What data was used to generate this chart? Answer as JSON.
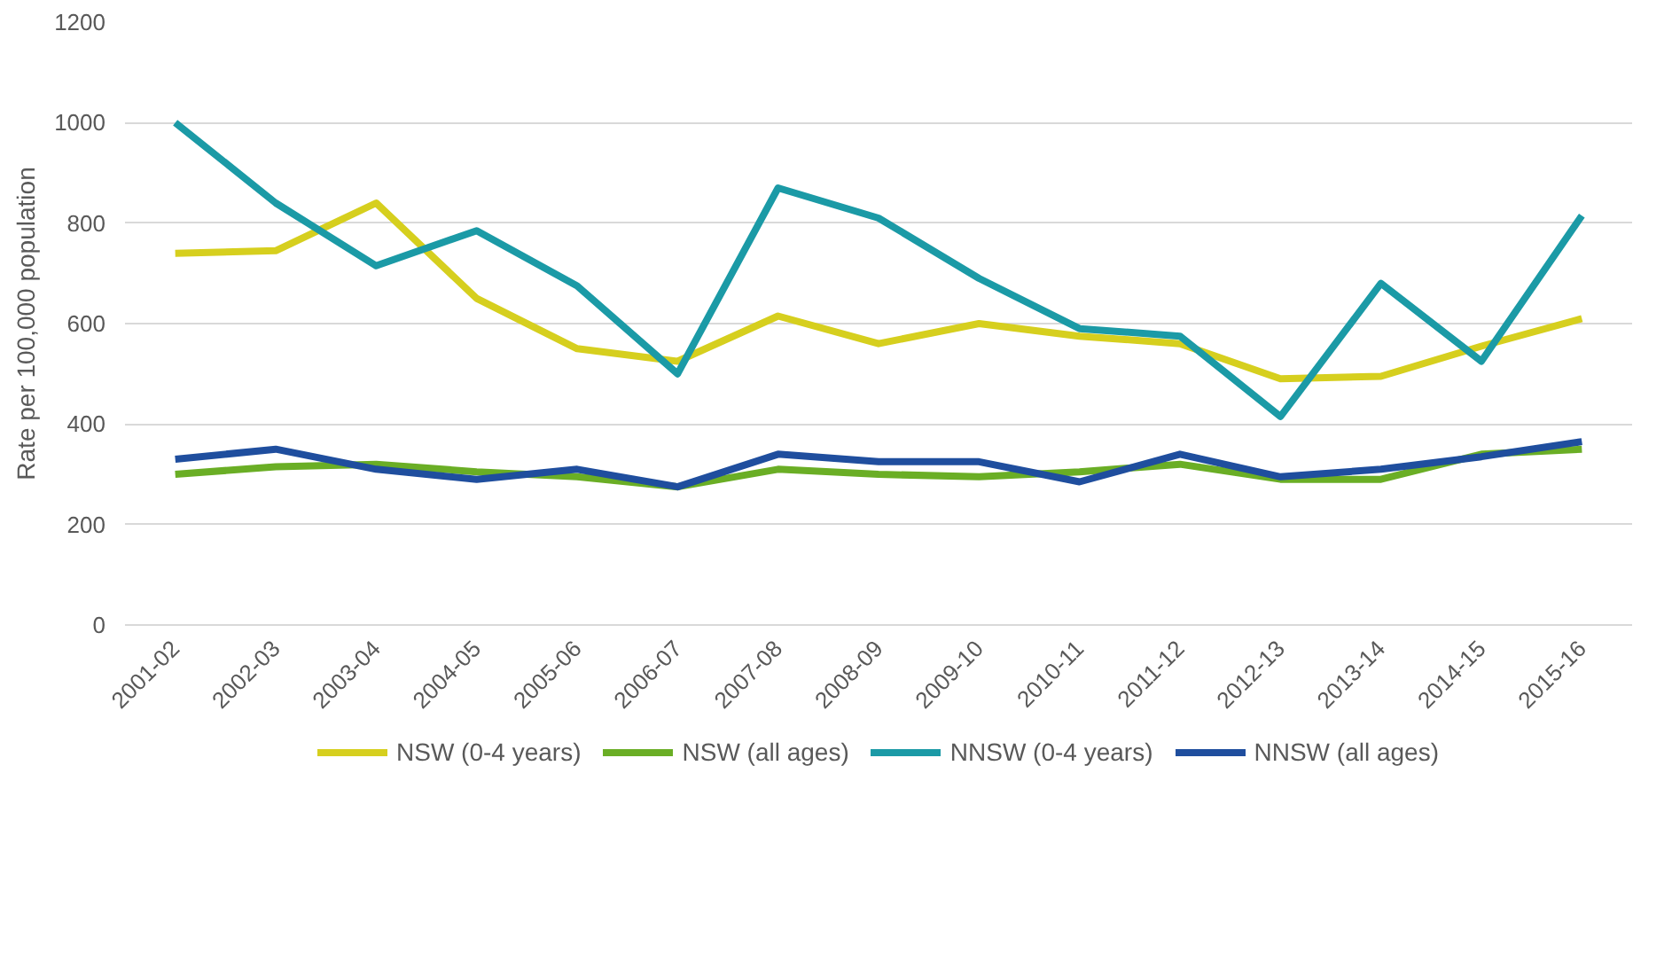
{
  "chart_data": {
    "type": "line",
    "ylabel": "Rate per 100,000 population",
    "categories": [
      "2001-02",
      "2002-03",
      "2003-04",
      "2004-05",
      "2005-06",
      "2006-07",
      "2007-08",
      "2008-09",
      "2009-10",
      "2010-11",
      "2011-12",
      "2012-13",
      "2013-14",
      "2014-15",
      "2015-16"
    ],
    "series": [
      {
        "name": "NSW (0-4 years)",
        "color": "#d6cf1e",
        "values": [
          740,
          745,
          840,
          650,
          550,
          525,
          615,
          560,
          600,
          575,
          560,
          490,
          495,
          555,
          610
        ]
      },
      {
        "name": "NSW (all ages)",
        "color": "#6aae25",
        "values": [
          300,
          315,
          320,
          305,
          295,
          275,
          310,
          300,
          295,
          305,
          320,
          290,
          290,
          340,
          350
        ]
      },
      {
        "name": "NNSW (0-4 years)",
        "color": "#1b9aa6",
        "values": [
          1000,
          840,
          715,
          785,
          675,
          500,
          870,
          810,
          690,
          590,
          575,
          415,
          680,
          525,
          815
        ]
      },
      {
        "name": "NNSW (all ages)",
        "color": "#1f4e9e",
        "values": [
          330,
          350,
          310,
          290,
          310,
          275,
          340,
          325,
          325,
          285,
          340,
          295,
          310,
          335,
          365
        ]
      }
    ],
    "ylim": [
      0,
      1200
    ],
    "yticks": [
      0,
      200,
      400,
      600,
      800,
      1000,
      1200
    ],
    "grid": "y",
    "legend": "bottom",
    "line_style": "solid"
  }
}
